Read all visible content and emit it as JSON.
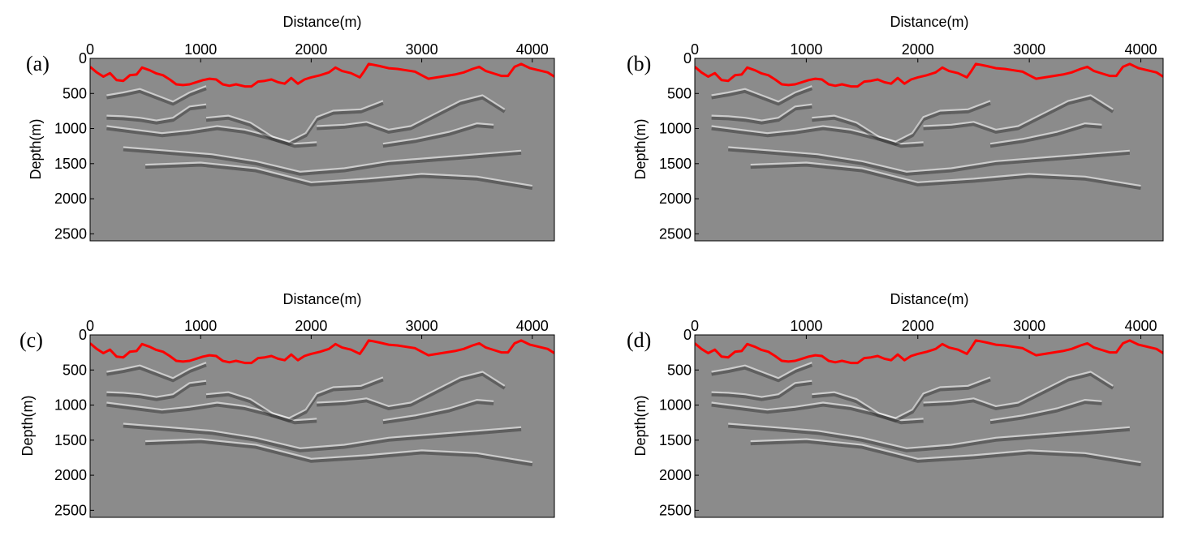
{
  "figure": {
    "panels": [
      {
        "id": "a",
        "label": "(a)"
      },
      {
        "id": "b",
        "label": "(b)"
      },
      {
        "id": "c",
        "label": "(c)"
      },
      {
        "id": "d",
        "label": "(d)"
      }
    ],
    "colors": {
      "background": "#8b8b8b",
      "surface_line": "#ff0000",
      "axis": "#000000",
      "reflector_light": "#f0f0f0",
      "reflector_dark": "#2a2a2a"
    }
  },
  "chart_data": [
    {
      "type": "heatmap",
      "panel": "(a)",
      "xlabel": "Distance(m)",
      "ylabel": "Depth(m)",
      "xlim": [
        0,
        4200
      ],
      "ylim": [
        2600,
        0
      ],
      "xticks": [
        0,
        1000,
        2000,
        3000,
        4000
      ],
      "xtick_labels": [
        "0",
        "1000",
        "2000",
        "3000",
        "4000"
      ],
      "yticks": [
        0,
        500,
        1000,
        1500,
        2000,
        2500
      ],
      "ytick_labels": [
        "0",
        "500",
        "1000",
        "1500",
        "2000",
        "2500"
      ],
      "x_axis_position": "top",
      "grid": false,
      "series": [
        {
          "type": "line",
          "x": [
            0,
            60,
            120,
            180,
            240,
            300,
            360,
            420,
            470,
            540,
            600,
            660,
            720,
            780,
            840,
            900,
            960,
            1020,
            1080,
            1140,
            1200,
            1260,
            1320,
            1400,
            1460,
            1520,
            1580,
            1640,
            1700,
            1760,
            1820,
            1880,
            1940,
            2000,
            2080,
            2160,
            2220,
            2280,
            2360,
            2440,
            2480,
            2520,
            2560,
            2620,
            2700,
            2780,
            2860,
            2940,
            3000,
            3060,
            3140,
            3220,
            3300,
            3380,
            3460,
            3520,
            3580,
            3660,
            3720,
            3780,
            3840,
            3900,
            3980,
            4060,
            4140,
            4200
          ],
          "y": [
            120,
            200,
            260,
            210,
            310,
            320,
            240,
            230,
            130,
            170,
            215,
            240,
            300,
            370,
            380,
            370,
            340,
            310,
            290,
            300,
            370,
            390,
            370,
            400,
            400,
            330,
            320,
            300,
            340,
            360,
            280,
            360,
            300,
            270,
            240,
            200,
            130,
            180,
            210,
            270,
            180,
            80,
            90,
            110,
            140,
            150,
            170,
            190,
            240,
            290,
            270,
            250,
            230,
            200,
            150,
            120,
            180,
            220,
            250,
            250,
            120,
            80,
            140,
            170,
            200,
            260
          ]
        }
      ]
    },
    {
      "type": "heatmap",
      "panel": "(b)",
      "xlabel": "Distance(m)",
      "ylabel": "Depth(m)",
      "xlim": [
        0,
        4200
      ],
      "ylim": [
        2600,
        0
      ],
      "xticks": [
        0,
        1000,
        2000,
        3000,
        4000
      ],
      "xtick_labels": [
        "0",
        "1000",
        "2000",
        "3000",
        "4000"
      ],
      "yticks": [
        0,
        500,
        1000,
        1500,
        2000,
        2500
      ],
      "ytick_labels": [
        "0",
        "500",
        "1000",
        "1500",
        "2000",
        "2500"
      ],
      "x_axis_position": "top",
      "grid": false,
      "series": [
        {
          "type": "line",
          "x": [
            0,
            60,
            120,
            180,
            240,
            300,
            360,
            420,
            470,
            540,
            600,
            660,
            720,
            780,
            840,
            900,
            960,
            1020,
            1080,
            1140,
            1200,
            1260,
            1320,
            1400,
            1460,
            1520,
            1580,
            1640,
            1700,
            1760,
            1820,
            1880,
            1940,
            2000,
            2080,
            2160,
            2220,
            2280,
            2360,
            2440,
            2480,
            2520,
            2560,
            2620,
            2700,
            2780,
            2860,
            2940,
            3000,
            3060,
            3140,
            3220,
            3300,
            3380,
            3460,
            3520,
            3580,
            3660,
            3720,
            3780,
            3840,
            3900,
            3980,
            4060,
            4140,
            4200
          ],
          "y": [
            120,
            200,
            260,
            210,
            310,
            320,
            240,
            230,
            130,
            170,
            215,
            240,
            300,
            370,
            380,
            370,
            340,
            310,
            290,
            300,
            370,
            390,
            370,
            400,
            400,
            330,
            320,
            300,
            340,
            360,
            280,
            360,
            300,
            270,
            240,
            200,
            130,
            180,
            210,
            270,
            180,
            80,
            90,
            110,
            140,
            150,
            170,
            190,
            240,
            290,
            270,
            250,
            230,
            200,
            150,
            120,
            180,
            220,
            250,
            250,
            120,
            80,
            140,
            170,
            200,
            260
          ]
        }
      ]
    },
    {
      "type": "heatmap",
      "panel": "(c)",
      "xlabel": "Distance(m)",
      "ylabel": "Depth(m)",
      "xlim": [
        0,
        4200
      ],
      "ylim": [
        2600,
        0
      ],
      "xticks": [
        0,
        1000,
        2000,
        3000,
        4000
      ],
      "xtick_labels": [
        "0",
        "1000",
        "2000",
        "3000",
        "4000"
      ],
      "yticks": [
        0,
        500,
        1000,
        1500,
        2000,
        2500
      ],
      "ytick_labels": [
        "0",
        "500",
        "1000",
        "1500",
        "2000",
        "2500"
      ],
      "x_axis_position": "top",
      "grid": false,
      "series": [
        {
          "type": "line",
          "x": [
            0,
            60,
            120,
            180,
            240,
            300,
            360,
            420,
            470,
            540,
            600,
            660,
            720,
            780,
            840,
            900,
            960,
            1020,
            1080,
            1140,
            1200,
            1260,
            1320,
            1400,
            1460,
            1520,
            1580,
            1640,
            1700,
            1760,
            1820,
            1880,
            1940,
            2000,
            2080,
            2160,
            2220,
            2280,
            2360,
            2440,
            2480,
            2520,
            2560,
            2620,
            2700,
            2780,
            2860,
            2940,
            3000,
            3060,
            3140,
            3220,
            3300,
            3380,
            3460,
            3520,
            3580,
            3660,
            3720,
            3780,
            3840,
            3900,
            3980,
            4060,
            4140,
            4200
          ],
          "y": [
            120,
            200,
            260,
            210,
            310,
            320,
            240,
            230,
            130,
            170,
            215,
            240,
            300,
            370,
            380,
            370,
            340,
            310,
            290,
            300,
            370,
            390,
            370,
            400,
            400,
            330,
            320,
            300,
            340,
            360,
            280,
            360,
            300,
            270,
            240,
            200,
            130,
            180,
            210,
            270,
            180,
            80,
            90,
            110,
            140,
            150,
            170,
            190,
            240,
            290,
            270,
            250,
            230,
            200,
            150,
            120,
            180,
            220,
            250,
            250,
            120,
            80,
            140,
            170,
            200,
            260
          ]
        }
      ]
    },
    {
      "type": "heatmap",
      "panel": "(d)",
      "xlabel": "Distance(m)",
      "ylabel": "Depth(m)",
      "xlim": [
        0,
        4200
      ],
      "ylim": [
        2600,
        0
      ],
      "xticks": [
        0,
        1000,
        2000,
        3000,
        4000
      ],
      "xtick_labels": [
        "0",
        "1000",
        "2000",
        "3000",
        "4000"
      ],
      "yticks": [
        0,
        500,
        1000,
        1500,
        2000,
        2500
      ],
      "ytick_labels": [
        "0",
        "500",
        "1000",
        "1500",
        "2000",
        "2500"
      ],
      "x_axis_position": "top",
      "grid": false,
      "series": [
        {
          "type": "line",
          "x": [
            0,
            60,
            120,
            180,
            240,
            300,
            360,
            420,
            470,
            540,
            600,
            660,
            720,
            780,
            840,
            900,
            960,
            1020,
            1080,
            1140,
            1200,
            1260,
            1320,
            1400,
            1460,
            1520,
            1580,
            1640,
            1700,
            1760,
            1820,
            1880,
            1940,
            2000,
            2080,
            2160,
            2220,
            2280,
            2360,
            2440,
            2480,
            2520,
            2560,
            2620,
            2700,
            2780,
            2860,
            2940,
            3000,
            3060,
            3140,
            3220,
            3300,
            3380,
            3460,
            3520,
            3580,
            3660,
            3720,
            3780,
            3840,
            3900,
            3980,
            4060,
            4140,
            4200
          ],
          "y": [
            120,
            200,
            260,
            210,
            310,
            320,
            240,
            230,
            130,
            170,
            215,
            240,
            300,
            370,
            380,
            370,
            340,
            310,
            290,
            300,
            370,
            390,
            370,
            400,
            400,
            330,
            320,
            300,
            340,
            360,
            280,
            360,
            300,
            270,
            240,
            200,
            130,
            180,
            210,
            270,
            180,
            80,
            90,
            110,
            140,
            150,
            170,
            190,
            240,
            290,
            270,
            250,
            230,
            200,
            150,
            120,
            180,
            220,
            250,
            250,
            120,
            80,
            140,
            170,
            200,
            260
          ]
        }
      ]
    }
  ]
}
